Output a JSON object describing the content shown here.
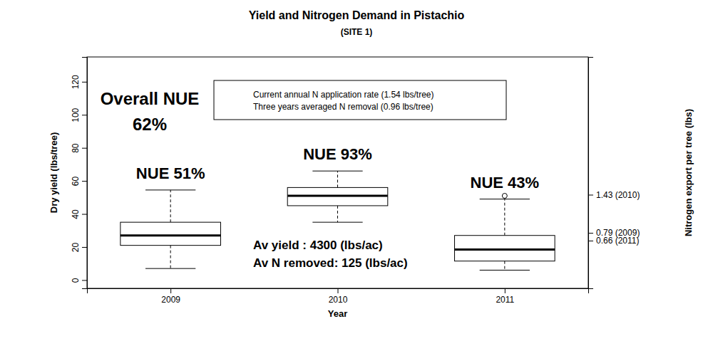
{
  "chart_data": {
    "type": "box",
    "title": "Yield and Nitrogen Demand in Pistachio",
    "subtitle": "(SITE 1)",
    "x_label": "Year",
    "y_label": "Dry yield (lbs/tree)",
    "y2_label": "Nitrogen export per tree (lbs)",
    "categories": [
      "2009",
      "2010",
      "2011"
    ],
    "color": "#000000",
    "boxes": [
      {
        "whislo": 7,
        "q1": 21,
        "med": 27,
        "q3": 35,
        "whishi": 54.5,
        "fliers": []
      },
      {
        "whislo": 35,
        "q1": 45,
        "med": 51,
        "q3": 56,
        "whishi": 66,
        "fliers": []
      },
      {
        "whislo": 6,
        "q1": 11.5,
        "med": 18.5,
        "q3": 27,
        "whishi": 49,
        "fliers": [
          51
        ]
      }
    ],
    "ylim": [
      -5,
      135
    ],
    "yticks": [
      0,
      20,
      40,
      60,
      80,
      100,
      120
    ],
    "y2lim": [
      -0.14,
      3.74
    ],
    "y2ticks": [
      {
        "value": 1.43,
        "label": "1.43 (2010)"
      },
      {
        "value": 0.79,
        "label": "0.79 (2009)"
      },
      {
        "value": 0.66,
        "label": "0.66 (2011)"
      }
    ],
    "annotations": {
      "overall": [
        "Overall NUE",
        "62%"
      ],
      "per_category": [
        "NUE 51%",
        "NUE 93%",
        "NUE 43%"
      ],
      "legend_box": [
        "Current annual N application rate (1.54 lbs/tree)",
        "Three years averaged N removal (0.96 lbs/tree)"
      ],
      "averages": [
        "Av yield : 4300 (lbs/ac)",
        "Av N removed: 125 (lbs/ac)"
      ]
    }
  }
}
